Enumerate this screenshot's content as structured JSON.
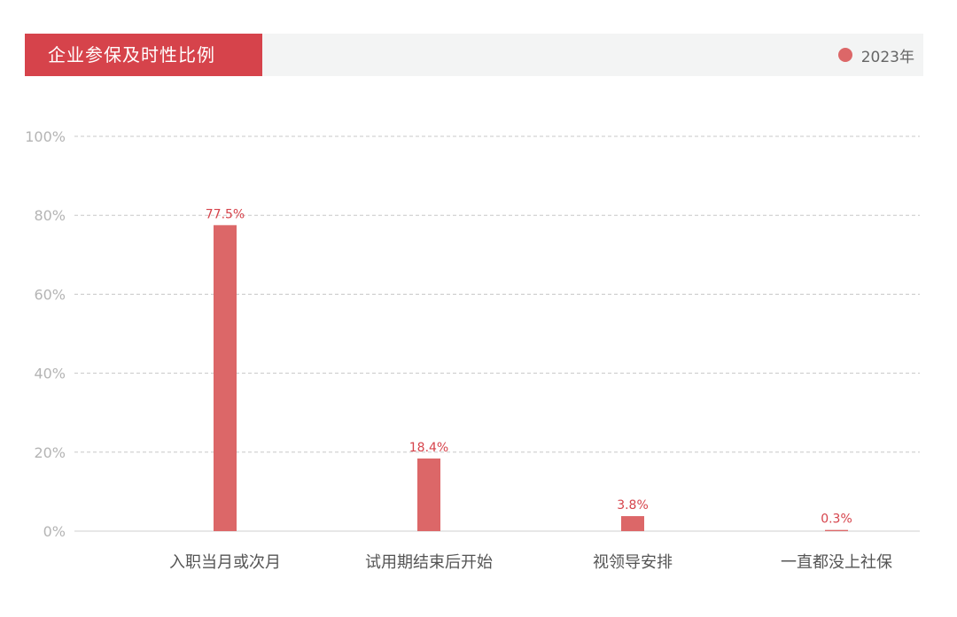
{
  "chart_data": {
    "type": "bar",
    "title": "企业参保及时性比例",
    "categories": [
      "入职当月或次月",
      "试用期结束后开始",
      "视领导安排",
      "一直都没上社保"
    ],
    "series": [
      {
        "name": "2023年",
        "values": [
          77.5,
          18.4,
          3.8,
          0.3
        ],
        "labels": [
          "77.5%",
          "18.4%",
          "3.8%",
          "0.3%"
        ]
      }
    ],
    "y_ticks": [
      "0%",
      "20%",
      "40%",
      "60%",
      "80%",
      "100%"
    ],
    "ylim": [
      0,
      100
    ],
    "grid": true,
    "legend": "top-right"
  },
  "colors": {
    "bar": "#dc6768",
    "title_bg": "#d6434b",
    "grid": "#c8c8c8"
  }
}
